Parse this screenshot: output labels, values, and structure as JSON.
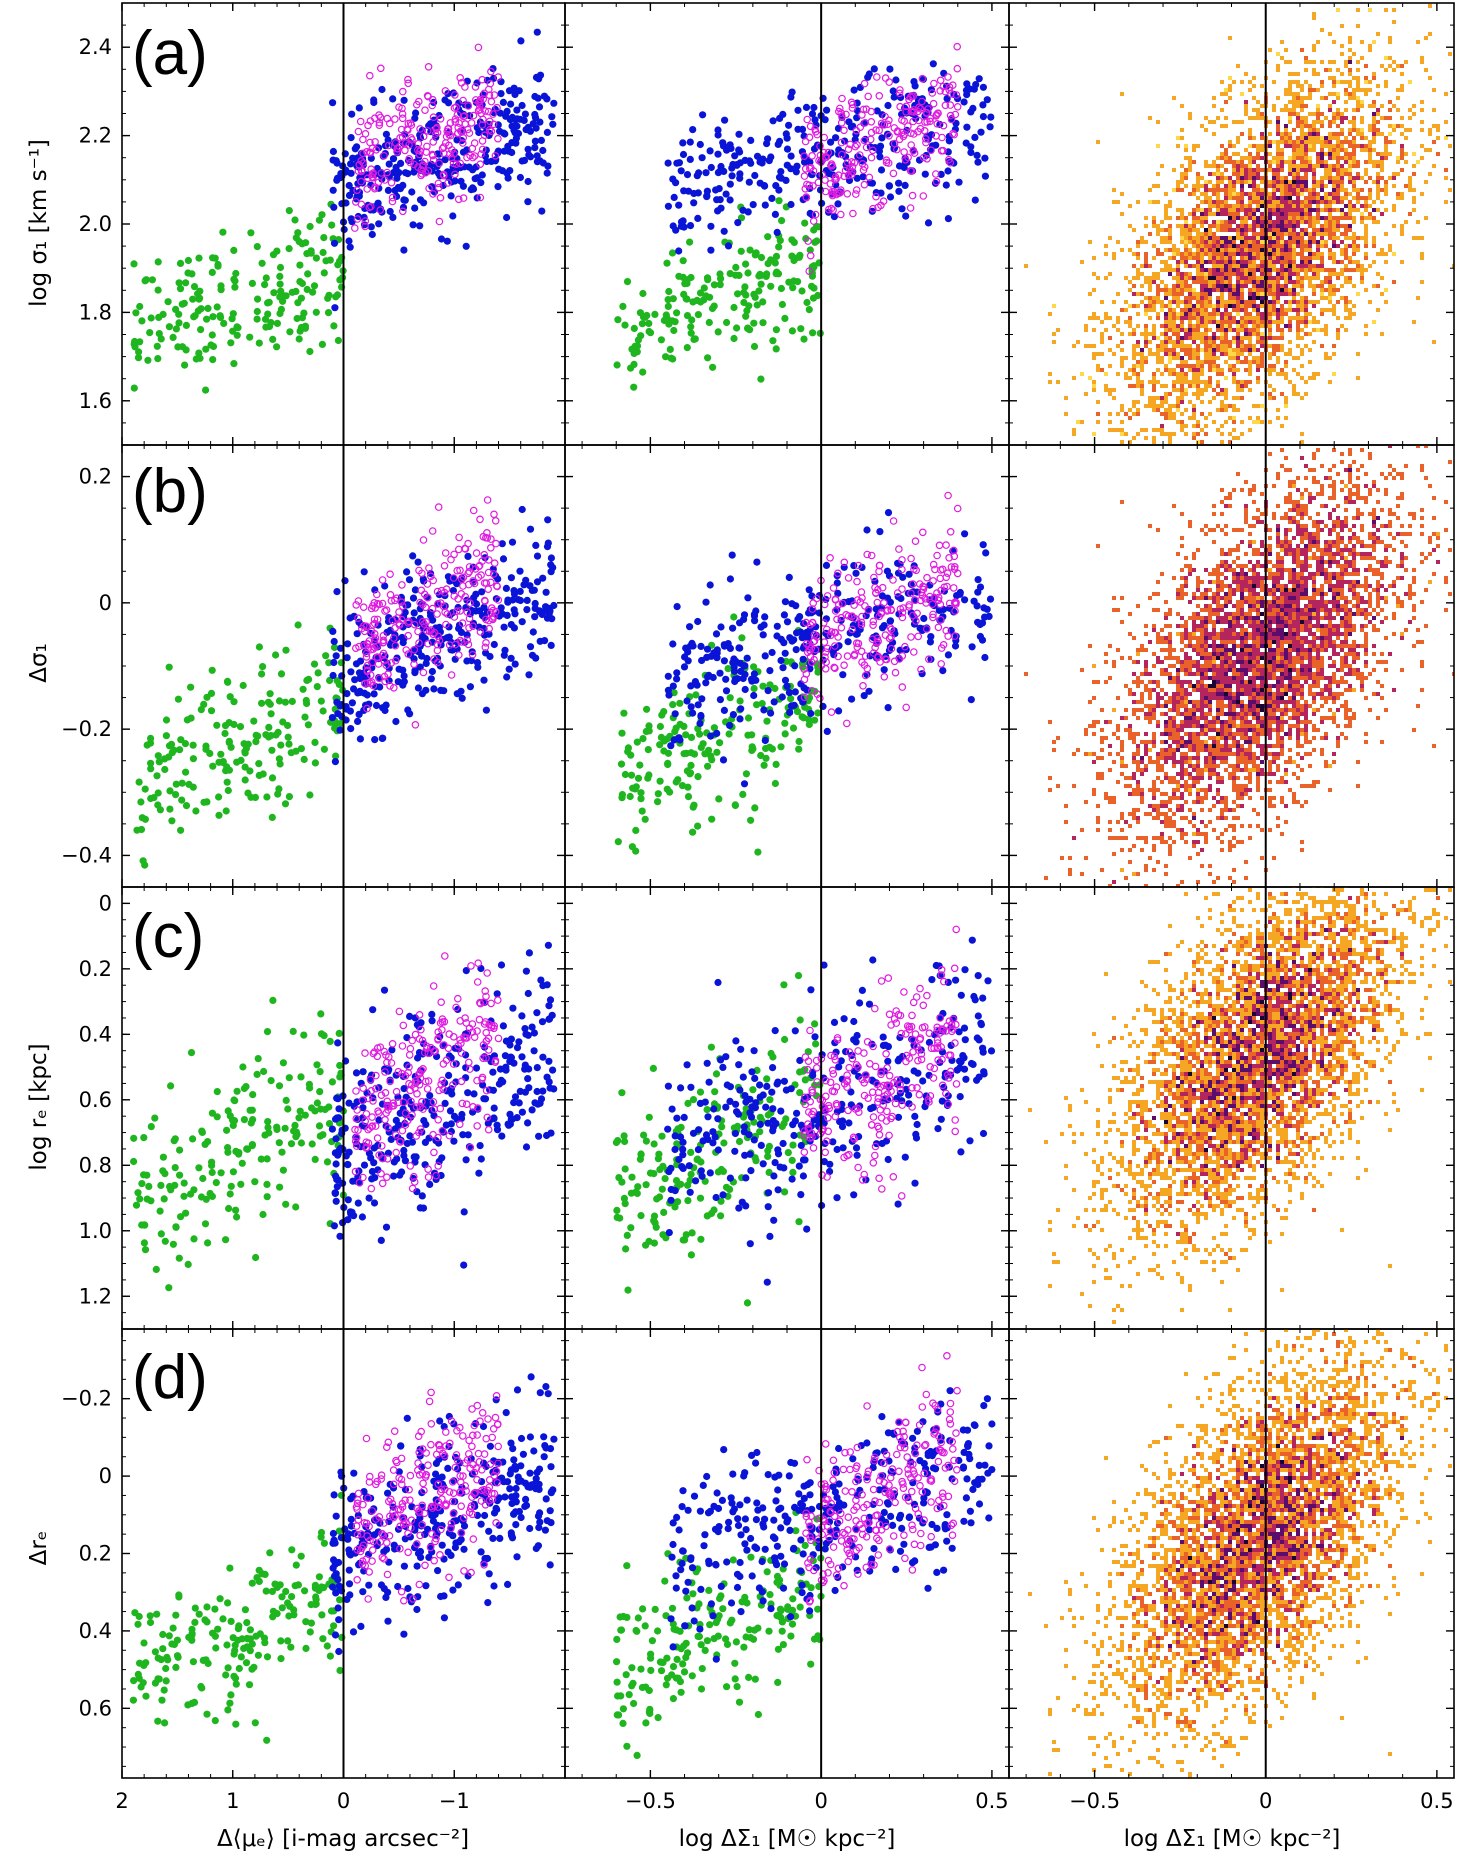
{
  "colors": {
    "green": "#1fb51f",
    "blue": "#0a14d6",
    "magenta": "#e01be0",
    "zero_line": "#000000"
  },
  "chart_data": {
    "type": "scatter",
    "layout": "4 rows x 3 columns",
    "x_axes": [
      {
        "label": "Δ⟨μₑ⟩ [i-mag arcsec⁻²]",
        "xlim": [
          2,
          -2.0
        ],
        "ticks": [
          2,
          1,
          0,
          -1
        ],
        "tick_labels": [
          "2",
          "1",
          "0",
          "−1"
        ]
      },
      {
        "label": "log ΔΣ₁ [M☉ kpc⁻²]",
        "xlim": [
          -0.75,
          0.55
        ],
        "ticks": [
          -0.5,
          0,
          0.5
        ],
        "tick_labels": [
          "−0.5",
          "0",
          "0.5"
        ]
      },
      {
        "label": "log ΔΣ₁ [M☉ kpc⁻²]",
        "xlim": [
          -0.75,
          0.55
        ],
        "ticks": [
          -0.5,
          0,
          0.5
        ],
        "tick_labels": [
          "−0.5",
          "0",
          "0.5"
        ]
      }
    ],
    "rows": [
      {
        "panel_label": "(a)",
        "ylabel": "log σ₁ [km s⁻¹]",
        "ylim": [
          1.5,
          2.5
        ],
        "inverted": false,
        "ticks": [
          1.6,
          1.8,
          2.0,
          2.2,
          2.4
        ],
        "tick_labels": [
          "1.6",
          "1.8",
          "2.0",
          "2.2",
          "2.4"
        ],
        "trend": {
          "green": [
            1.83,
            0.1
          ],
          "colored": [
            2.15,
            0.1
          ],
          "density_center": 1.95
        }
      },
      {
        "panel_label": "(b)",
        "ylabel": "Δσ₁",
        "ylim": [
          -0.45,
          0.25
        ],
        "inverted": false,
        "ticks": [
          -0.4,
          -0.2,
          0,
          0.2
        ],
        "tick_labels": [
          "−0.4",
          "−0.2",
          "0",
          "0.2"
        ],
        "trend": {
          "green": [
            -0.22,
            0.08
          ],
          "colored": [
            -0.05,
            0.08
          ],
          "density_center": -0.08
        }
      },
      {
        "panel_label": "(c)",
        "ylabel": "log rₑ [kpc]",
        "ylim": [
          1.3,
          -0.05
        ],
        "inverted": true,
        "ticks": [
          0,
          0.2,
          0.4,
          0.6,
          0.8,
          1.0,
          1.2
        ],
        "tick_labels": [
          "0",
          "0.2",
          "0.4",
          "0.6",
          "0.8",
          "1.0",
          "1.2"
        ],
        "trend": {
          "green": [
            0.75,
            0.18
          ],
          "colored": [
            0.6,
            0.2
          ],
          "density_center": 0.45
        }
      },
      {
        "panel_label": "(d)",
        "ylabel": "Δrₑ",
        "ylim": [
          0.78,
          -0.38
        ],
        "inverted": true,
        "ticks": [
          -0.2,
          0,
          0.2,
          0.4,
          0.6
        ],
        "tick_labels": [
          "−0.2",
          "0",
          "0.2",
          "0.4",
          "0.6"
        ],
        "trend": {
          "green": [
            0.4,
            0.14
          ],
          "colored": [
            0.1,
            0.14
          ],
          "density_center": 0.15
        }
      }
    ],
    "series": [
      {
        "name": "green population",
        "marker": "filled circle",
        "color": "#1fb51f",
        "x_range_col1": [
          1.9,
          0.0
        ],
        "x_range_col2": [
          -0.6,
          0.0
        ]
      },
      {
        "name": "blue population",
        "marker": "filled circle",
        "color": "#0a14d6",
        "x_range_col1": [
          0.1,
          -1.9
        ],
        "x_range_col2": [
          -0.45,
          0.5
        ]
      },
      {
        "name": "magenta population",
        "marker": "open circle",
        "color": "#e01be0",
        "x_range_col1": [
          -0.1,
          -1.4
        ],
        "x_range_col2": [
          -0.05,
          0.4
        ]
      }
    ],
    "column3": {
      "type": "heatmap",
      "description": "2D density histogram, yellow (low) to dark purple (high)",
      "colormap": [
        "#ffd84a",
        "#f5a623",
        "#e8622a",
        "#b3255c",
        "#5c0d6b",
        "#1a0433"
      ]
    },
    "vertical_line_at": 0
  }
}
